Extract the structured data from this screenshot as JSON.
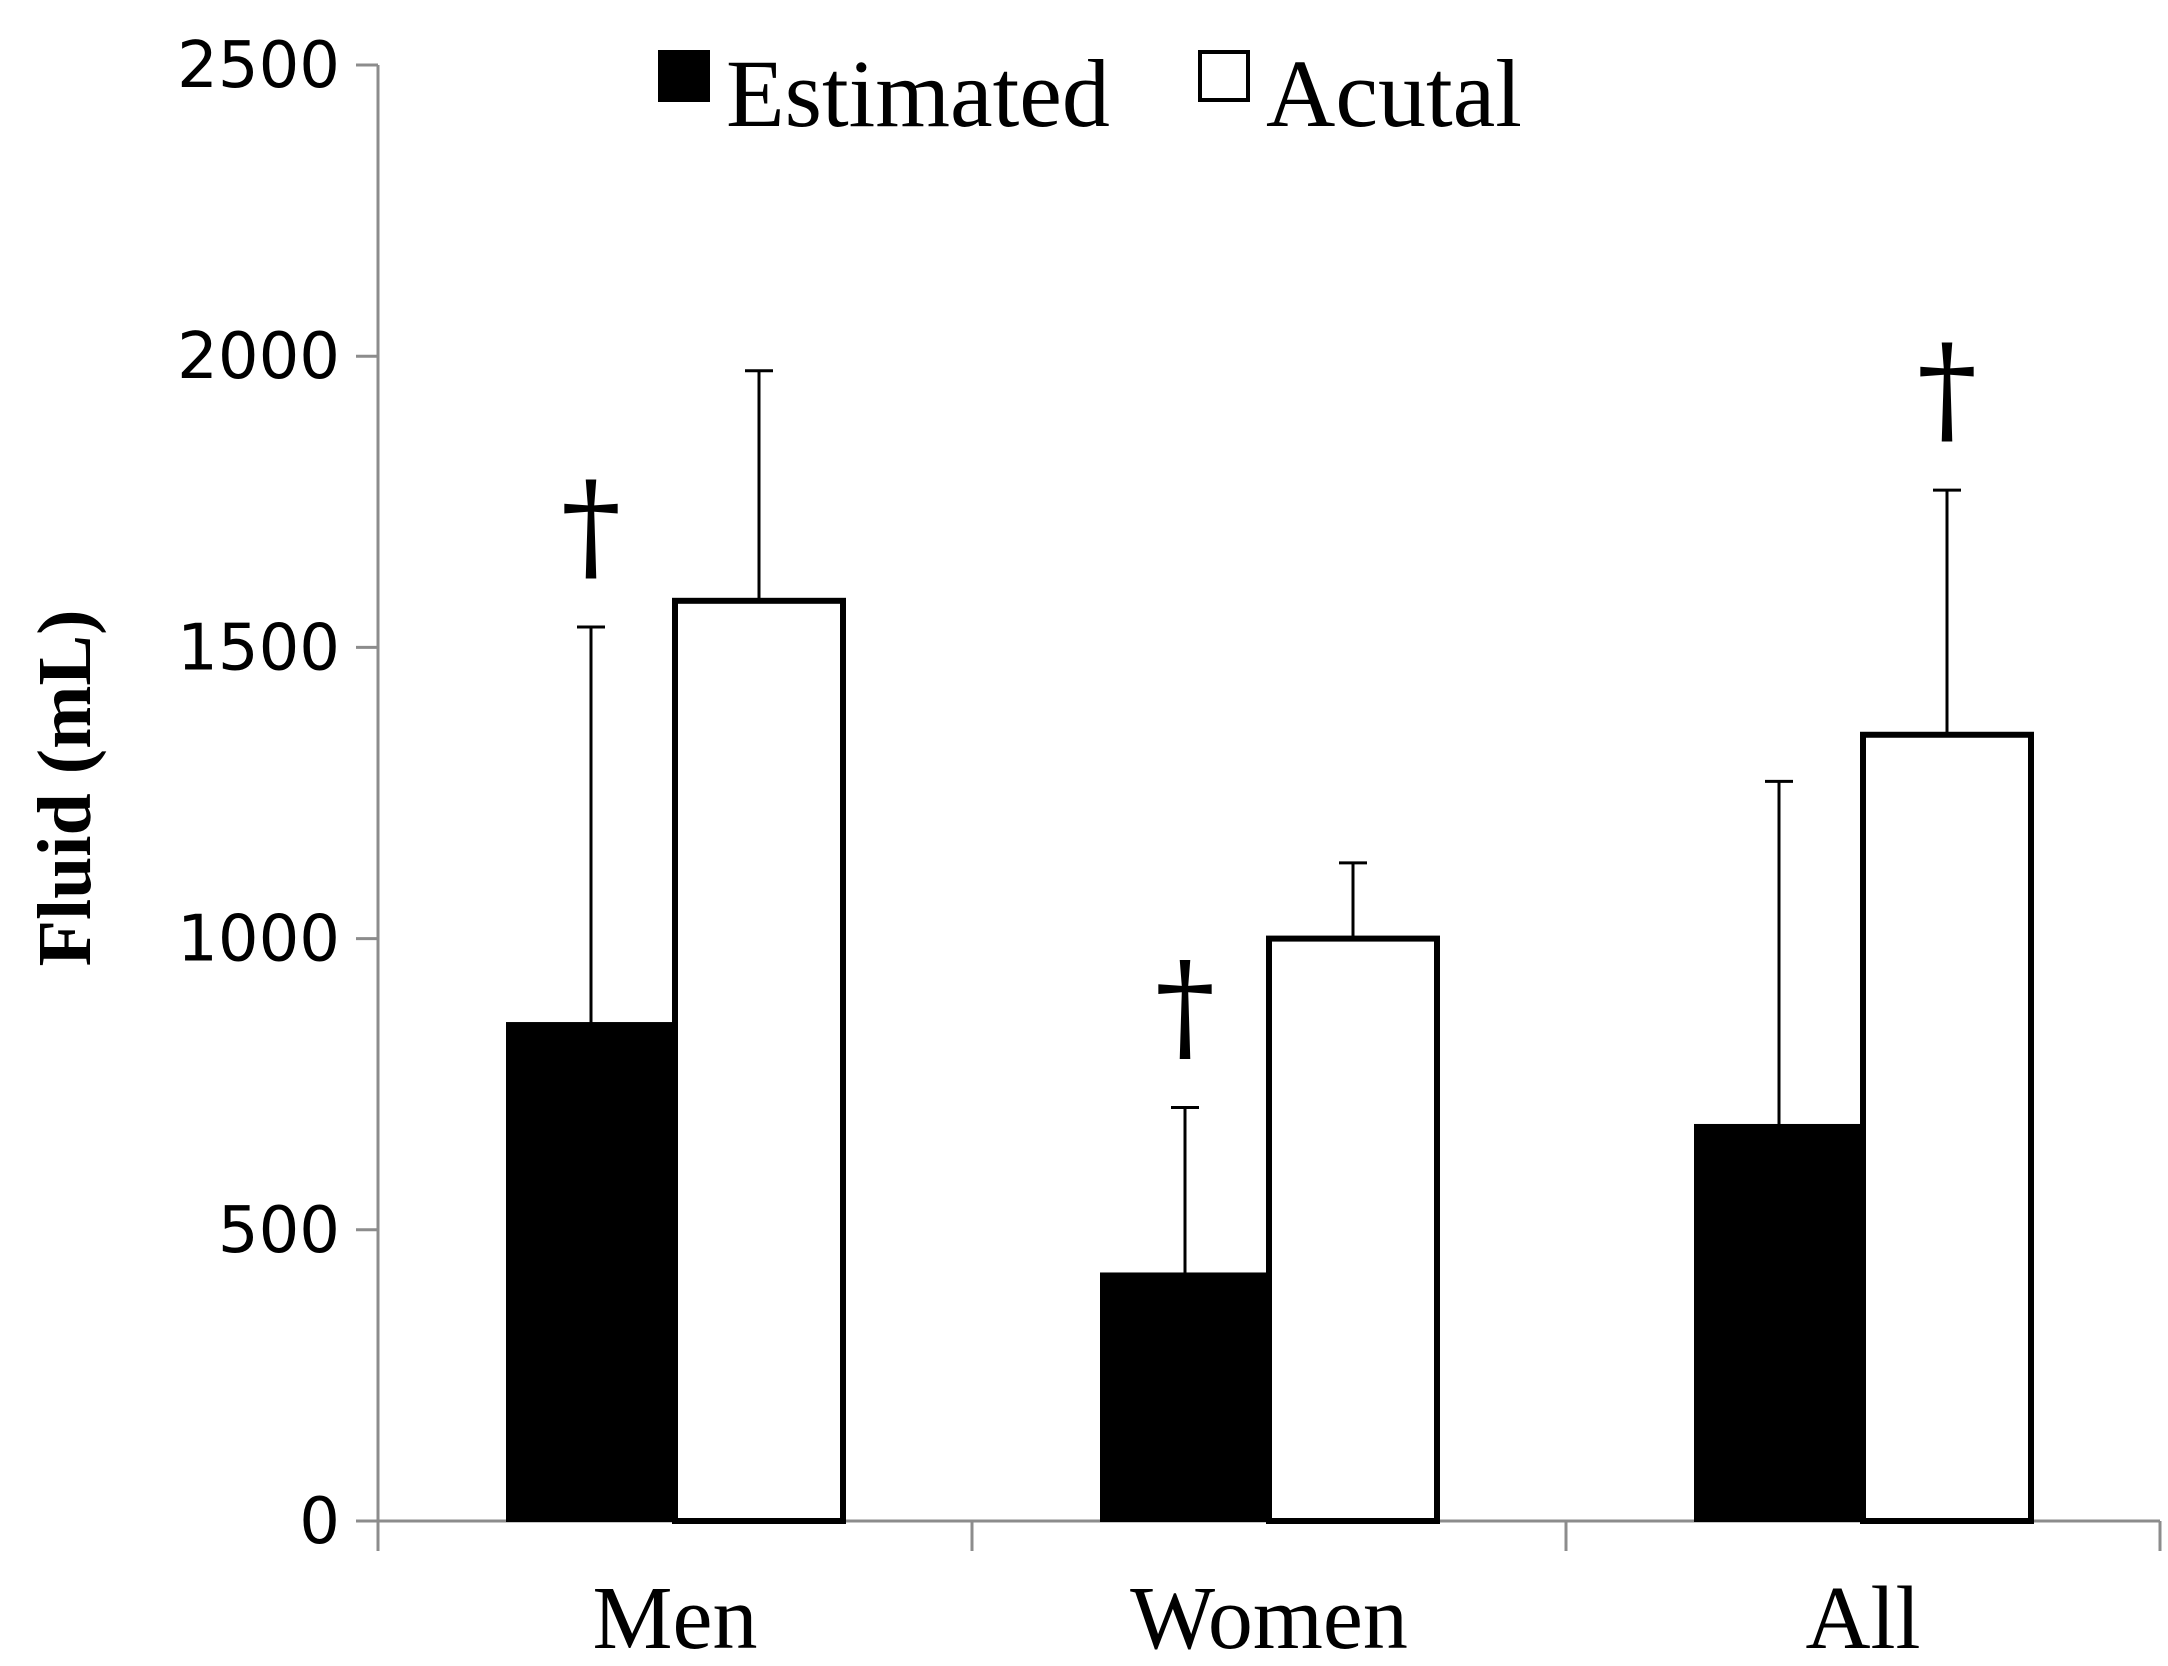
{
  "chart_data": {
    "type": "bar",
    "categories": [
      "Men",
      "Women",
      "All"
    ],
    "series": [
      {
        "name": "Estimated",
        "values": [
          855,
          425,
          680
        ],
        "error": [
          680,
          285,
          590
        ],
        "color": "#000000"
      },
      {
        "name": "Acutal",
        "values": [
          1580,
          1000,
          1350
        ],
        "error": [
          395,
          130,
          420
        ],
        "color": "#ffffff"
      }
    ],
    "ylabel": "Fluid (mL)",
    "xlabel": "",
    "ylim": [
      0,
      2500
    ],
    "yticks": [
      "0",
      "500",
      "1000",
      "1500",
      "2000",
      "2500"
    ],
    "grid": false,
    "legend_position": "top-center",
    "annotations": [
      {
        "category": "Men",
        "series": "Estimated",
        "text": "†"
      },
      {
        "category": "Women",
        "series": "Estimated",
        "text": "†"
      },
      {
        "category": "All",
        "series": "Acutal",
        "text": "†"
      }
    ]
  }
}
